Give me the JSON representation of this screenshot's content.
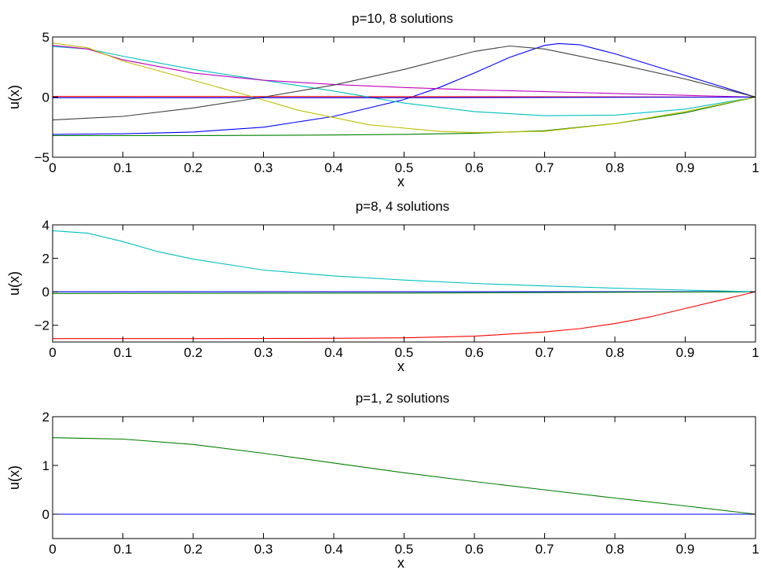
{
  "chart_data": [
    {
      "type": "line",
      "title": "p=10, 8 solutions",
      "xlabel": "x",
      "ylabel": "u(x)",
      "xlim": [
        0,
        1
      ],
      "ylim": [
        -5,
        5
      ],
      "xticks": [
        0,
        0.1,
        0.2,
        0.3,
        0.4,
        0.5,
        0.6,
        0.7,
        0.8,
        0.9,
        1
      ],
      "yticks": [
        -5,
        0,
        5
      ],
      "xtick_labels": [
        "0",
        "0.1",
        "0.2",
        "0.3",
        "0.4",
        "0.5",
        "0.6",
        "0.7",
        "0.8",
        "0.9",
        "1"
      ],
      "ytick_labels": [
        "−5",
        "0",
        "5"
      ],
      "grid": false,
      "series": [
        {
          "color": "#0000ff",
          "x": [
            0,
            0.1,
            0.2,
            0.3,
            0.4,
            0.5,
            0.55,
            0.6,
            0.65,
            0.7,
            0.72,
            0.75,
            0.8,
            0.9,
            1.0
          ],
          "y": [
            -3.1,
            -3.05,
            -2.9,
            -2.5,
            -1.6,
            -0.2,
            0.8,
            2.0,
            3.3,
            4.3,
            4.45,
            4.35,
            3.6,
            1.8,
            0.0
          ]
        },
        {
          "color": "#008000",
          "x": [
            0,
            0.2,
            0.4,
            0.5,
            0.6,
            0.7,
            0.8,
            0.9,
            1.0
          ],
          "y": [
            -3.2,
            -3.2,
            -3.15,
            -3.1,
            -3.0,
            -2.8,
            -2.2,
            -1.3,
            0.0
          ]
        },
        {
          "color": "#ff0000",
          "x": [
            0,
            0.5,
            1.0
          ],
          "y": [
            0.05,
            0.04,
            0.0
          ]
        },
        {
          "color": "#00bfbf",
          "x": [
            0,
            0.05,
            0.1,
            0.2,
            0.3,
            0.4,
            0.5,
            0.6,
            0.7,
            0.8,
            0.9,
            1.0
          ],
          "y": [
            4.2,
            4.0,
            3.4,
            2.3,
            1.4,
            0.5,
            -0.5,
            -1.2,
            -1.55,
            -1.5,
            -1.0,
            0.0
          ]
        },
        {
          "color": "#bf00bf",
          "x": [
            0,
            0.05,
            0.1,
            0.2,
            0.3,
            0.4,
            0.5,
            0.6,
            0.7,
            0.8,
            0.9,
            1.0
          ],
          "y": [
            4.3,
            4.0,
            3.1,
            2.0,
            1.4,
            1.05,
            0.8,
            0.6,
            0.45,
            0.3,
            0.15,
            0.0
          ]
        },
        {
          "color": "#bfbf00",
          "x": [
            0,
            0.05,
            0.1,
            0.2,
            0.28,
            0.35,
            0.45,
            0.55,
            0.6,
            0.7,
            0.8,
            0.9,
            1.0
          ],
          "y": [
            4.5,
            4.1,
            3.0,
            1.4,
            0.1,
            -1.1,
            -2.3,
            -2.85,
            -2.95,
            -2.85,
            -2.2,
            -1.2,
            0.0
          ]
        },
        {
          "color": "#404040",
          "x": [
            0,
            0.1,
            0.2,
            0.3,
            0.4,
            0.5,
            0.6,
            0.65,
            0.7,
            0.8,
            0.9,
            1.0
          ],
          "y": [
            -1.9,
            -1.6,
            -0.9,
            0.0,
            1.0,
            2.3,
            3.8,
            4.25,
            4.0,
            2.8,
            1.5,
            0.0
          ]
        },
        {
          "color": "#0000ff",
          "x": [
            0,
            0.5,
            1.0
          ],
          "y": [
            -0.05,
            -0.05,
            0.0
          ]
        }
      ]
    },
    {
      "type": "line",
      "title": "p=8, 4 solutions",
      "xlabel": "x",
      "ylabel": "u(x)",
      "xlim": [
        0,
        1
      ],
      "ylim": [
        -3,
        4
      ],
      "xticks": [
        0,
        0.1,
        0.2,
        0.3,
        0.4,
        0.5,
        0.6,
        0.7,
        0.8,
        0.9,
        1
      ],
      "yticks": [
        -2,
        0,
        2,
        4
      ],
      "xtick_labels": [
        "0",
        "0.1",
        "0.2",
        "0.3",
        "0.4",
        "0.5",
        "0.6",
        "0.7",
        "0.8",
        "0.9",
        "1"
      ],
      "ytick_labels": [
        "−2",
        "0",
        "2",
        "4"
      ],
      "grid": false,
      "series": [
        {
          "color": "#0000ff",
          "x": [
            0,
            0.5,
            1.0
          ],
          "y": [
            0.0,
            0.0,
            0.0
          ]
        },
        {
          "color": "#008000",
          "x": [
            0,
            0.5,
            1.0
          ],
          "y": [
            -0.1,
            -0.08,
            0.0
          ]
        },
        {
          "color": "#ff0000",
          "x": [
            0,
            0.2,
            0.4,
            0.5,
            0.6,
            0.7,
            0.75,
            0.8,
            0.85,
            0.9,
            0.95,
            1.0
          ],
          "y": [
            -2.8,
            -2.8,
            -2.78,
            -2.75,
            -2.65,
            -2.4,
            -2.2,
            -1.9,
            -1.5,
            -1.0,
            -0.5,
            0.0
          ]
        },
        {
          "color": "#00bfbf",
          "x": [
            0,
            0.05,
            0.1,
            0.15,
            0.2,
            0.3,
            0.4,
            0.5,
            0.6,
            0.7,
            0.8,
            0.9,
            1.0
          ],
          "y": [
            3.65,
            3.5,
            3.0,
            2.4,
            1.95,
            1.3,
            0.95,
            0.7,
            0.5,
            0.35,
            0.22,
            0.1,
            0.0
          ]
        }
      ]
    },
    {
      "type": "line",
      "title": "p=1, 2 solutions",
      "xlabel": "x",
      "ylabel": "u(x)",
      "xlim": [
        0,
        1
      ],
      "ylim": [
        -0.5,
        2
      ],
      "xticks": [
        0,
        0.1,
        0.2,
        0.3,
        0.4,
        0.5,
        0.6,
        0.7,
        0.8,
        0.9,
        1
      ],
      "yticks": [
        0,
        1,
        2
      ],
      "xtick_labels": [
        "0",
        "0.1",
        "0.2",
        "0.3",
        "0.4",
        "0.5",
        "0.6",
        "0.7",
        "0.8",
        "0.9",
        "1"
      ],
      "ytick_labels": [
        "0",
        "1",
        "2"
      ],
      "grid": false,
      "series": [
        {
          "color": "#0000ff",
          "x": [
            0,
            0.5,
            1.0
          ],
          "y": [
            0.0,
            0.0,
            0.0
          ]
        },
        {
          "color": "#008000",
          "x": [
            0,
            0.1,
            0.2,
            0.3,
            0.4,
            0.5,
            0.6,
            0.7,
            0.8,
            0.9,
            1.0
          ],
          "y": [
            1.57,
            1.54,
            1.43,
            1.25,
            1.05,
            0.85,
            0.67,
            0.5,
            0.33,
            0.17,
            0.0
          ]
        }
      ]
    }
  ]
}
